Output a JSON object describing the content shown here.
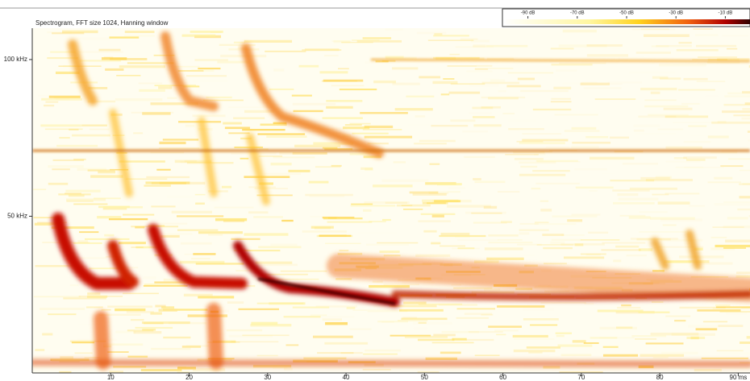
{
  "chart_data": {
    "type": "spectrogram",
    "title": "Spectrogram, FFT size 1024, Hanning window",
    "xlim": [
      0,
      91.5
    ],
    "xticks": [
      10,
      20,
      30,
      40,
      50,
      60,
      70,
      80,
      {
        "value": 90,
        "label": "90 ms"
      }
    ],
    "ylim": [
      0,
      110
    ],
    "yticks": [
      {
        "value": 50,
        "label": "50 kHz"
      },
      {
        "value": 100,
        "label": "100 kHz"
      }
    ],
    "colorbar": {
      "lim": [
        -100,
        0
      ],
      "ticks": [
        {
          "value": -90,
          "label": "-90 dB"
        },
        {
          "value": -70,
          "label": "-70 dB"
        },
        {
          "value": -50,
          "label": "-50 dB"
        },
        {
          "value": -30,
          "label": "-30 dB"
        },
        {
          "value": -10,
          "label": "-10 dB"
        }
      ]
    }
  }
}
